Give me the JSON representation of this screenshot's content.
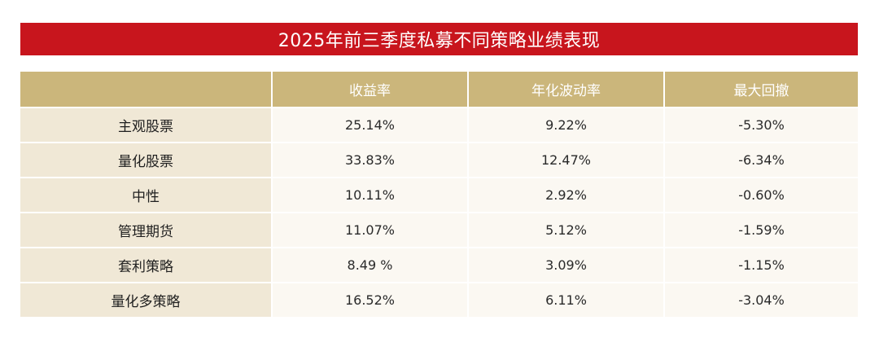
{
  "title": "2025年前三季度私募不同策略业绩表现",
  "colors": {
    "title_bg": "#c8151d",
    "header_bg": "#cbb67b",
    "row_label_bg": "#f0e8d6",
    "cell_bg": "#fbf8f2"
  },
  "table": {
    "headers": [
      "",
      "收益率",
      "年化波动率",
      "最大回撤"
    ],
    "rows": [
      {
        "strategy": "主观股票",
        "return": "25.14%",
        "volatility": "9.22%",
        "drawdown": "-5.30%"
      },
      {
        "strategy": "量化股票",
        "return": "33.83%",
        "volatility": "12.47%",
        "drawdown": "-6.34%"
      },
      {
        "strategy": "中性",
        "return": "10.11%",
        "volatility": "2.92%",
        "drawdown": "-0.60%"
      },
      {
        "strategy": "管理期货",
        "return": "11.07%",
        "volatility": "5.12%",
        "drawdown": "-1.59%"
      },
      {
        "strategy": "套利策略",
        "return": "8.49 %",
        "volatility": "3.09%",
        "drawdown": "-1.15%"
      },
      {
        "strategy": "量化多策略",
        "return": "16.52%",
        "volatility": "6.11%",
        "drawdown": "-3.04%"
      }
    ]
  }
}
